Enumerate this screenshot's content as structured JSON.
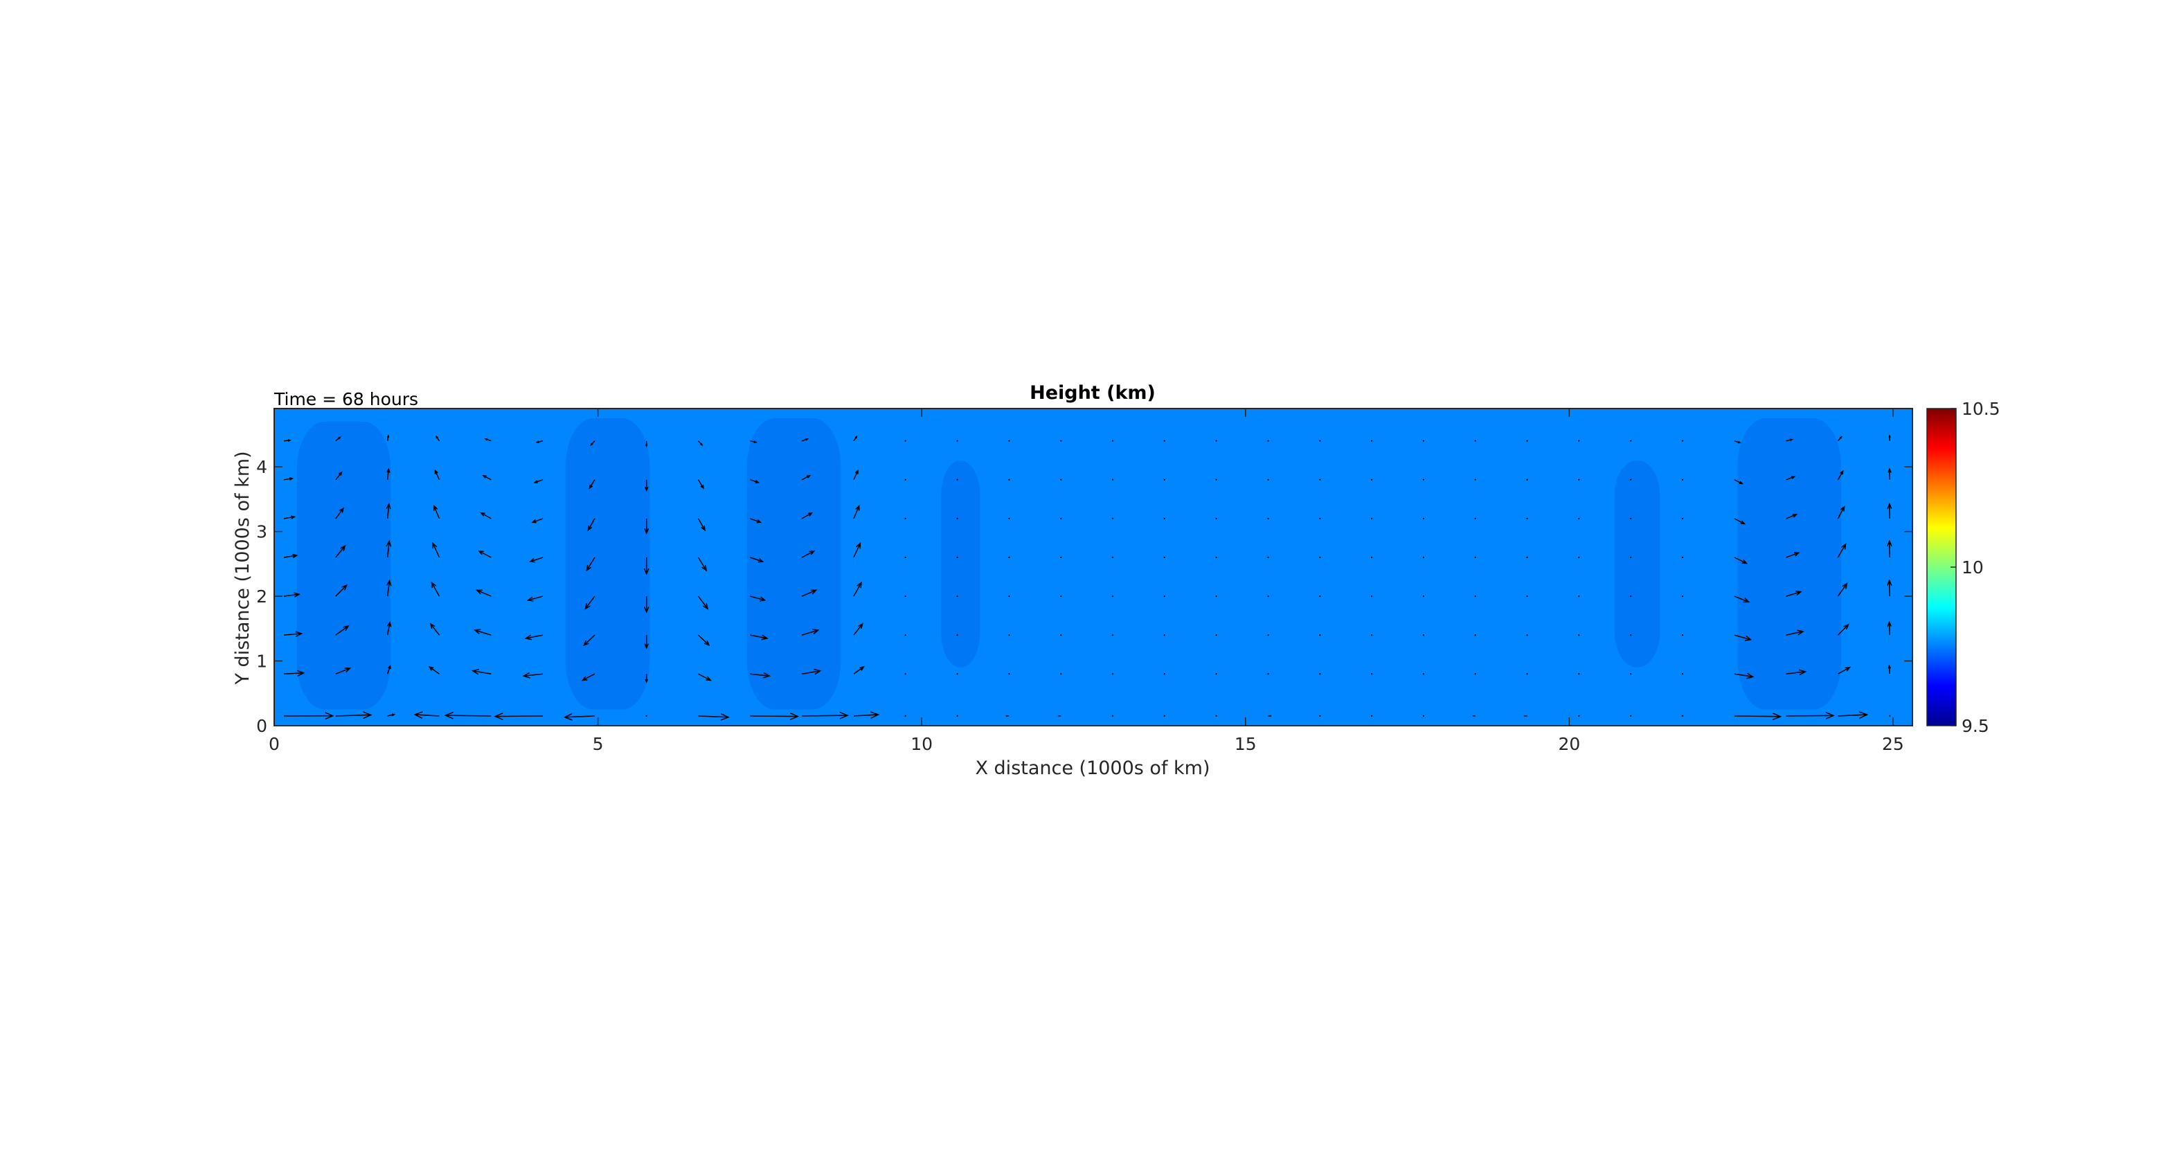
{
  "chart_data": {
    "type": "heatmap",
    "title": "Height (km)",
    "annotation": "Time = 68 hours",
    "xlabel": "X distance (1000s of km)",
    "ylabel": "Y distance (1000s of km)",
    "xlim": [
      0,
      25.3
    ],
    "ylim": [
      0,
      4.9
    ],
    "xticks": [
      "0",
      "5",
      "10",
      "15",
      "20",
      "25"
    ],
    "yticks": [
      "0",
      "1",
      "2",
      "3",
      "4"
    ],
    "colorbar": {
      "colormap": "jet",
      "range": [
        9.5,
        10.5
      ],
      "ticks": [
        "9.5",
        "10",
        "10.5"
      ]
    },
    "background_value": 9.79,
    "background_color": "#0087ff",
    "low_band_color": "#0077f4",
    "low_bands": [
      {
        "x_min": 0.35,
        "x_max": 1.8,
        "y_min": 0.25,
        "y_max": 4.7,
        "value": 9.76
      },
      {
        "x_min": 4.5,
        "x_max": 5.8,
        "y_min": 0.25,
        "y_max": 4.75,
        "value": 9.76
      },
      {
        "x_min": 7.3,
        "x_max": 8.75,
        "y_min": 0.25,
        "y_max": 4.75,
        "value": 9.76
      },
      {
        "x_min": 10.3,
        "x_max": 10.9,
        "y_min": 0.9,
        "y_max": 4.1,
        "value": 9.77
      },
      {
        "x_min": 20.7,
        "x_max": 21.4,
        "y_min": 0.9,
        "y_max": 4.1,
        "value": 9.77
      },
      {
        "x_min": 22.6,
        "x_max": 24.2,
        "y_min": 0.25,
        "y_max": 4.75,
        "value": 9.76
      }
    ],
    "quiver": {
      "x_spacing": 0.8,
      "y_values": [
        0.15,
        0.8,
        1.4,
        2.0,
        2.6,
        3.2,
        3.8,
        4.4
      ],
      "description": "velocity vectors"
    }
  }
}
